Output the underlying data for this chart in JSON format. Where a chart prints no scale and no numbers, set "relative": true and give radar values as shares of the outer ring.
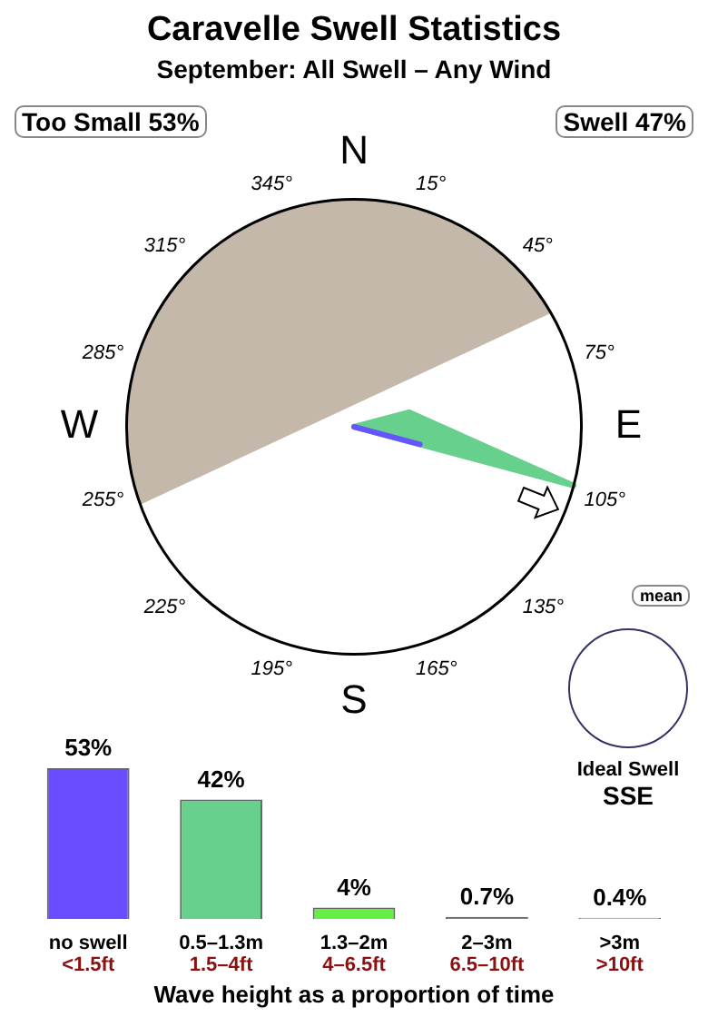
{
  "chart_data": [
    {
      "type": "radar",
      "title": "Caravelle Swell Statistics",
      "subtitle": "September: All Swell – Any Wind",
      "relative": true,
      "categories": [
        "15°",
        "45°",
        "75°",
        "105°",
        "135°",
        "165°",
        "195°",
        "225°",
        "255°",
        "285°",
        "315°",
        "345°"
      ],
      "series": [
        {
          "color": "#6655ff",
          "values": [
            0,
            0,
            0,
            0.3,
            0,
            0,
            0,
            0,
            0,
            0,
            0,
            0
          ]
        },
        {
          "color": "#66d08c",
          "values": [
            0,
            0,
            0.25,
            1,
            0,
            0,
            0,
            0,
            0,
            0,
            0,
            0
          ]
        }
      ],
      "annotations": [
        "N",
        "E",
        "S",
        "W",
        "Too Small 53%",
        "Swell 47%",
        "mean",
        "Ideal Swell",
        "SSE"
      ]
    },
    {
      "type": "bar",
      "categories": [
        "no swell\n<1.5ft",
        "0.5–1.3m\n1.5–4ft",
        "1.3–2m\n4–6.5ft",
        "2–3m\n6.5–10ft",
        ">3m\n>10ft"
      ],
      "values": [
        53,
        42,
        4,
        0.7,
        0.4
      ],
      "colors": [
        "#6a4cff",
        "#66d08c",
        "#66ee44",
        "#888844",
        "#cc9999"
      ],
      "value_labels": [
        "53%",
        "42%",
        "4%",
        "0.7%",
        "0.4%"
      ],
      "xlabel": "Wave height as a proportion of time",
      "tick_labels": "x"
    }
  ]
}
